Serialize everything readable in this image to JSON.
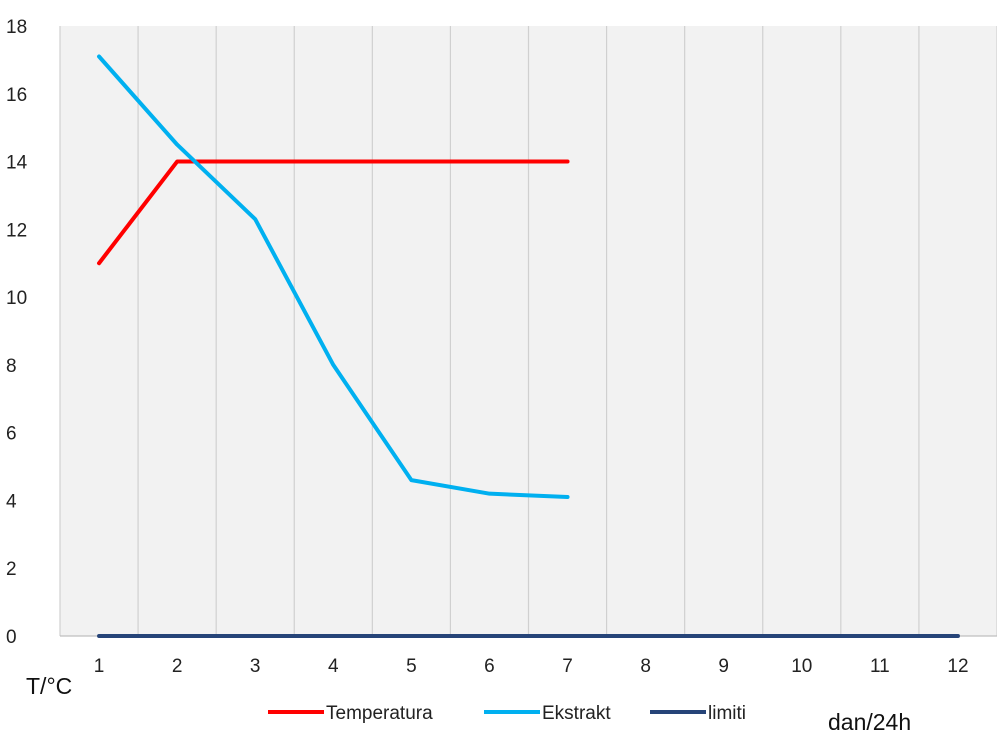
{
  "chart_data": {
    "type": "line",
    "x": [
      1,
      2,
      3,
      4,
      5,
      6,
      7,
      8,
      9,
      10,
      11,
      12
    ],
    "x_ticks": [
      "1",
      "2",
      "3",
      "4",
      "5",
      "6",
      "7",
      "8",
      "9",
      "10",
      "11",
      "12"
    ],
    "y_ticks": [
      "0",
      "2",
      "4",
      "6",
      "8",
      "10",
      "12",
      "14",
      "16",
      "18"
    ],
    "ylim": [
      0,
      18
    ],
    "y_axis_label": "T/°C",
    "x_axis_label": "dan/24h",
    "grid": "vertical",
    "legend_position": "bottom",
    "series": [
      {
        "name": "Temperatura",
        "color": "#ff0000",
        "x": [
          1,
          2,
          3,
          4,
          5,
          6,
          7
        ],
        "values": [
          11,
          14,
          14,
          14,
          14,
          14,
          14
        ]
      },
      {
        "name": "Ekstrakt",
        "color": "#00b0f0",
        "x": [
          1,
          2,
          3,
          4,
          5,
          6,
          7
        ],
        "values": [
          17.1,
          14.5,
          12.3,
          8.0,
          4.6,
          4.2,
          4.1
        ]
      },
      {
        "name": "limiti",
        "color": "#264478",
        "x": [
          1,
          2,
          3,
          4,
          5,
          6,
          7,
          8,
          9,
          10,
          11,
          12
        ],
        "values": [
          0,
          0,
          0,
          0,
          0,
          0,
          0,
          0,
          0,
          0,
          0,
          0
        ]
      }
    ]
  }
}
